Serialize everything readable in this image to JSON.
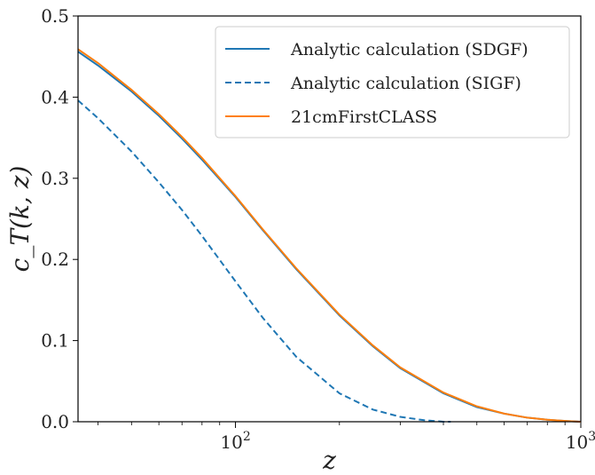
{
  "chart_data": {
    "type": "line",
    "xlabel": "z",
    "ylabel": "c_T(k, z)",
    "xscale": "log",
    "xlim": [
      35,
      1000
    ],
    "ylim": [
      0,
      0.5
    ],
    "xticks": [
      {
        "value": 100,
        "base": "10",
        "exp": "2"
      },
      {
        "value": 1000,
        "base": "10",
        "exp": "3"
      }
    ],
    "yticks": [
      {
        "value": 0.0,
        "label": "0.0"
      },
      {
        "value": 0.1,
        "label": "0.1"
      },
      {
        "value": 0.2,
        "label": "0.2"
      },
      {
        "value": 0.3,
        "label": "0.3"
      },
      {
        "value": 0.4,
        "label": "0.4"
      },
      {
        "value": 0.5,
        "label": "0.5"
      }
    ],
    "legend_position": "top-right",
    "series": [
      {
        "name": "Analytic calculation (SDGF)",
        "color": "#1f77b4",
        "style": "solid",
        "x": [
          35,
          40,
          50,
          60,
          70,
          80,
          100,
          120,
          150,
          200,
          250,
          300,
          400,
          500,
          600,
          700,
          800,
          900,
          1000
        ],
        "y": [
          0.456,
          0.439,
          0.407,
          0.377,
          0.349,
          0.323,
          0.277,
          0.236,
          0.188,
          0.131,
          0.093,
          0.066,
          0.035,
          0.018,
          0.01,
          0.005,
          0.0025,
          0.001,
          0.0
        ]
      },
      {
        "name": "Analytic calculation (SIGF)",
        "color": "#1f77b4",
        "style": "dashed",
        "x": [
          35,
          40,
          50,
          60,
          70,
          80,
          100,
          120,
          150,
          200,
          250,
          300,
          350,
          400,
          420
        ],
        "y": [
          0.396,
          0.374,
          0.333,
          0.295,
          0.261,
          0.229,
          0.173,
          0.128,
          0.08,
          0.035,
          0.015,
          0.006,
          0.002,
          0.0,
          0.0
        ]
      },
      {
        "name": "21cmFirstCLASS",
        "color": "#ff7f0e",
        "style": "solid",
        "x": [
          35,
          40,
          50,
          60,
          70,
          80,
          100,
          120,
          150,
          200,
          250,
          300,
          400,
          500,
          600,
          700,
          800,
          900,
          1000
        ],
        "y": [
          0.459,
          0.442,
          0.409,
          0.379,
          0.351,
          0.325,
          0.278,
          0.237,
          0.189,
          0.132,
          0.094,
          0.067,
          0.036,
          0.019,
          0.01,
          0.005,
          0.0025,
          0.001,
          0.0
        ]
      }
    ]
  }
}
